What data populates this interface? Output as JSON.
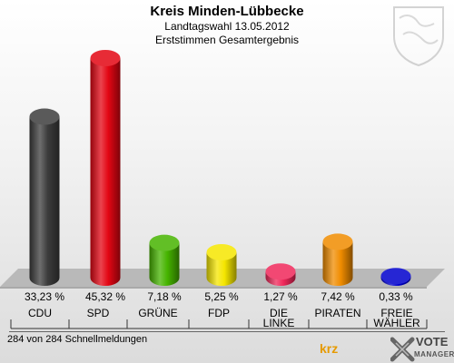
{
  "header": {
    "title": "Kreis Minden-Lübbecke",
    "subtitle1": "Landtagswahl 13.05.2012",
    "subtitle2": "Erststimmen Gesamtergebnis"
  },
  "footer": {
    "text": "284 von 284 Schnellmeldungen",
    "krz_logo": "krz",
    "vote_logo": "VOTE",
    "vote_logo_sub": "MANAGER"
  },
  "icons": [
    "coat-of-arms-icon",
    "krz-logo",
    "vote-manager-logo"
  ],
  "chart_data": {
    "type": "bar",
    "categories": [
      "CDU",
      "SPD",
      "GRÜNE",
      "FDP",
      "DIE LINKE",
      "PIRATEN",
      "FREIE WÄHLER"
    ],
    "values": [
      33.23,
      45.32,
      7.18,
      5.25,
      1.27,
      7.42,
      0.33
    ],
    "value_labels": [
      "33,23 %",
      "45,32 %",
      "7,18 %",
      "5,25 %",
      "1,27 %",
      "7,42 %",
      "0,33 %"
    ],
    "colors": [
      "#3d3d3d",
      "#e30613",
      "#46b400",
      "#f5e600",
      "#f0285a",
      "#f08c00",
      "#0000cc"
    ],
    "ylim": [
      0,
      50
    ],
    "grid": false,
    "legend": "none"
  }
}
